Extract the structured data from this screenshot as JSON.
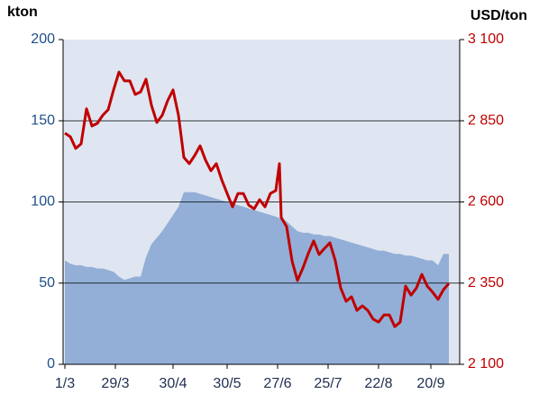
{
  "chart_data": {
    "type": "area-line",
    "y_label": "kton",
    "y2_label": "USD/ton",
    "x": [
      0,
      3,
      6,
      9,
      12,
      15,
      18,
      21,
      24,
      27,
      30,
      33,
      36,
      39,
      42,
      45,
      48,
      51,
      54,
      57,
      60,
      63,
      66,
      69,
      72,
      75,
      78,
      81,
      84,
      87,
      90,
      93,
      96,
      99,
      102,
      105,
      108,
      111,
      114,
      117,
      119,
      120,
      123,
      126,
      129,
      132,
      135,
      138,
      141,
      144,
      147,
      150,
      153,
      156,
      159,
      162,
      165,
      168,
      171,
      174,
      177,
      180,
      183,
      186,
      189,
      192,
      195,
      198,
      201,
      204,
      207,
      210,
      213
    ],
    "xlim": [
      -1,
      219
    ],
    "xticks": [
      {
        "value": 0,
        "label": "1/3"
      },
      {
        "value": 28,
        "label": "29/3"
      },
      {
        "value": 60,
        "label": "30/4"
      },
      {
        "value": 90,
        "label": "30/5"
      },
      {
        "value": 118,
        "label": "27/6"
      },
      {
        "value": 146,
        "label": "25/7"
      },
      {
        "value": 174,
        "label": "22/8"
      },
      {
        "value": 203,
        "label": "20/9"
      }
    ],
    "ylim": [
      0,
      200
    ],
    "yticks": [
      0,
      50,
      100,
      150,
      200
    ],
    "y2lim": [
      2100,
      3100
    ],
    "y2ticks": [
      {
        "value": 2100,
        "label": "2 100"
      },
      {
        "value": 2350,
        "label": "2 350"
      },
      {
        "value": 2600,
        "label": "2 600"
      },
      {
        "value": 2850,
        "label": "2 850"
      },
      {
        "value": 3100,
        "label": "3 100"
      }
    ],
    "grid": true,
    "series": [
      {
        "kind": "area",
        "color": "#93afd7",
        "values": [
          64,
          62,
          61,
          61,
          60,
          60,
          59,
          59,
          58,
          57,
          54,
          52,
          53,
          54,
          54,
          66,
          74,
          78,
          82,
          87,
          92,
          97,
          106,
          106,
          106,
          105,
          104,
          103,
          102,
          101,
          100,
          99,
          98,
          97,
          96,
          95,
          94,
          93,
          92,
          91,
          90,
          90,
          88,
          85,
          82,
          81,
          81,
          80,
          80,
          79,
          79,
          78,
          77,
          76,
          75,
          74,
          73,
          72,
          71,
          70,
          70,
          69,
          68,
          68,
          67,
          67,
          66,
          65,
          64,
          64,
          61,
          68,
          68
        ]
      },
      {
        "kind": "line",
        "axis": "y2",
        "color": "#c00000",
        "values": [
          2812,
          2801,
          2765,
          2779,
          2887,
          2834,
          2842,
          2867,
          2884,
          2945,
          3000,
          2973,
          2973,
          2931,
          2939,
          2978,
          2898,
          2845,
          2867,
          2912,
          2945,
          2867,
          2737,
          2718,
          2743,
          2773,
          2729,
          2696,
          2718,
          2668,
          2626,
          2585,
          2626,
          2626,
          2590,
          2579,
          2607,
          2585,
          2626,
          2635,
          2718,
          2552,
          2524,
          2419,
          2358,
          2396,
          2441,
          2480,
          2438,
          2457,
          2474,
          2419,
          2335,
          2294,
          2308,
          2266,
          2280,
          2266,
          2239,
          2230,
          2252,
          2252,
          2216,
          2230,
          2341,
          2313,
          2335,
          2377,
          2341,
          2322,
          2300,
          2330,
          2349
        ]
      }
    ]
  }
}
